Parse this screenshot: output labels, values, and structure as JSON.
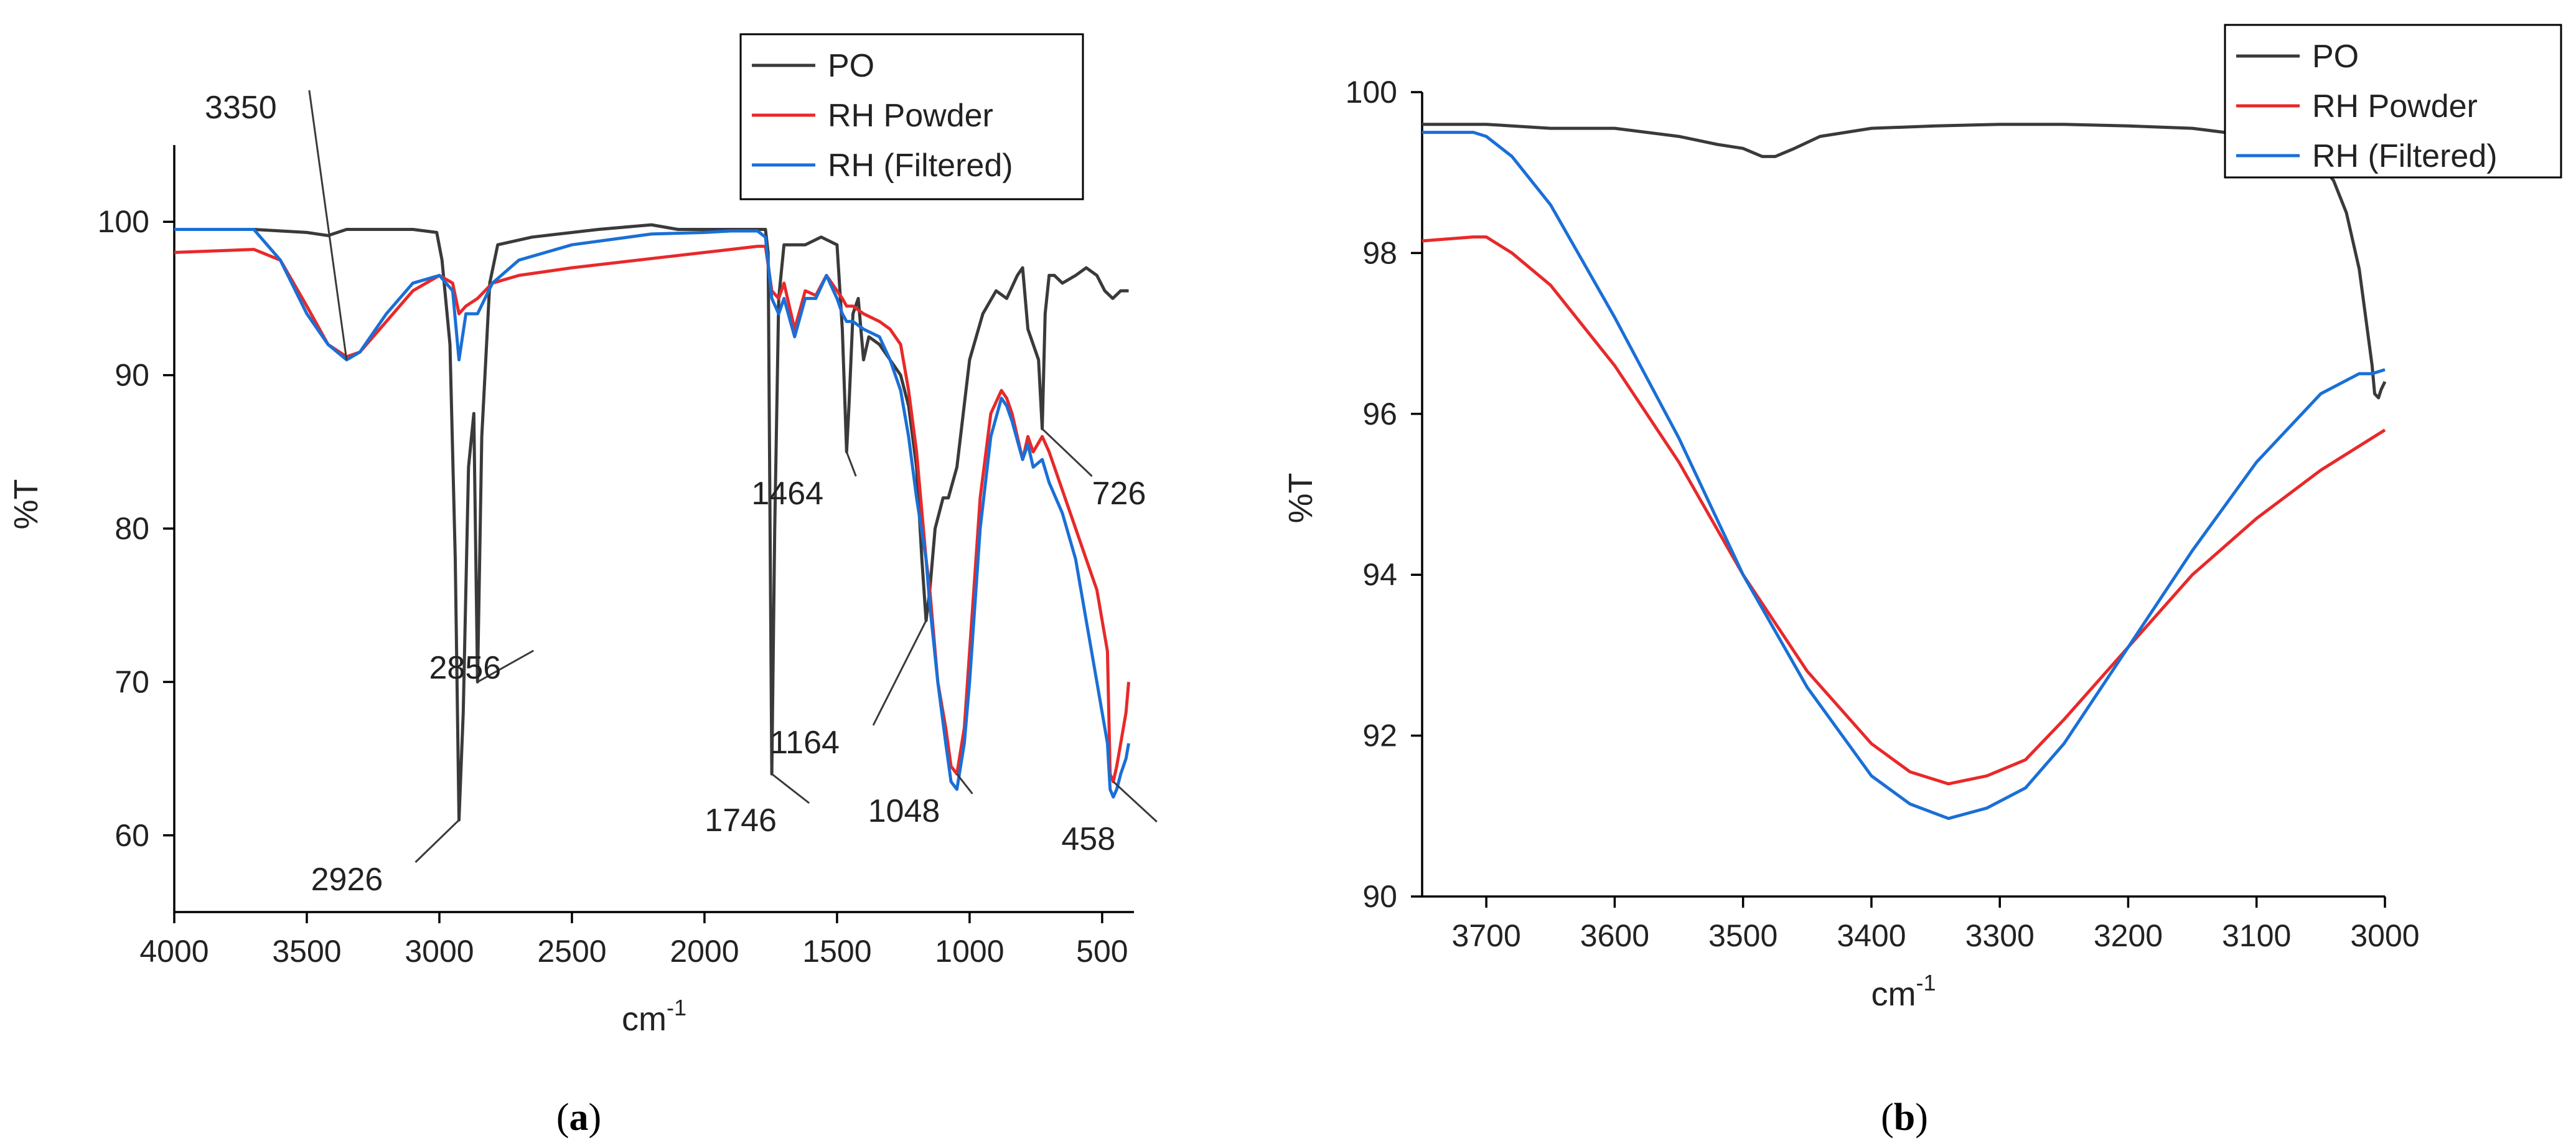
{
  "colors": {
    "po": "#3a3a3a",
    "rh_powder": "#e8292a",
    "rh_filtered": "#1a6fd6"
  },
  "chart_data": [
    {
      "type": "line",
      "panel_label": "(a)",
      "panel_letter": "a",
      "xlabel": "cm",
      "xlabel_sup": "-1",
      "ylabel": "%T",
      "xlim": [
        4000,
        380
      ],
      "ylim": [
        55,
        105
      ],
      "xticks": [
        "4000",
        "3500",
        "3000",
        "2500",
        "2000",
        "1500",
        "1000",
        "500"
      ],
      "yticks": [
        "60",
        "70",
        "80",
        "90",
        "100"
      ],
      "legend": [
        "PO",
        "RH Powder",
        "RH (Filtered)"
      ],
      "series": [
        {
          "name": "PO",
          "color_key": "po",
          "x": [
            3700,
            3500,
            3420,
            3350,
            3200,
            3100,
            3010,
            2990,
            2960,
            2940,
            2926,
            2910,
            2890,
            2870,
            2856,
            2840,
            2810,
            2780,
            2650,
            2400,
            2200,
            2100,
            1900,
            1800,
            1770,
            1760,
            1746,
            1735,
            1720,
            1700,
            1660,
            1620,
            1560,
            1500,
            1480,
            1470,
            1464,
            1455,
            1440,
            1420,
            1400,
            1380,
            1340,
            1300,
            1260,
            1230,
            1200,
            1180,
            1164,
            1150,
            1130,
            1100,
            1080,
            1048,
            1000,
            950,
            900,
            860,
            820,
            800,
            780,
            740,
            726,
            715,
            700,
            680,
            650,
            600,
            560,
            520,
            490,
            460,
            430,
            400
          ],
          "y": [
            99.5,
            99.3,
            99.1,
            99.5,
            99.5,
            99.5,
            99.3,
            97.5,
            92,
            78,
            61,
            68,
            84,
            87.5,
            70,
            86,
            96,
            98.5,
            99,
            99.5,
            99.8,
            99.5,
            99.5,
            99.5,
            99.5,
            98,
            64,
            80,
            95,
            98.5,
            98.5,
            98.5,
            99,
            98.5,
            93,
            88,
            85,
            88,
            94,
            95,
            91,
            92.5,
            92,
            91,
            90,
            88,
            84,
            78,
            74,
            76,
            80,
            82,
            82,
            84,
            91,
            94,
            95.5,
            95,
            96.5,
            97,
            93,
            91,
            86.5,
            94,
            96.5,
            96.5,
            96,
            96.5,
            97,
            96.5,
            95.5,
            95,
            95.5,
            95.5
          ]
        },
        {
          "name": "RH Powder",
          "color_key": "rh_powder",
          "x": [
            4000,
            3700,
            3600,
            3500,
            3420,
            3350,
            3300,
            3200,
            3100,
            3000,
            2950,
            2926,
            2900,
            2856,
            2800,
            2700,
            2500,
            2200,
            2000,
            1900,
            1800,
            1770,
            1746,
            1720,
            1700,
            1660,
            1620,
            1580,
            1540,
            1500,
            1480,
            1464,
            1440,
            1400,
            1340,
            1300,
            1260,
            1230,
            1200,
            1164,
            1150,
            1120,
            1090,
            1070,
            1048,
            1020,
            1000,
            960,
            920,
            880,
            860,
            840,
            800,
            780,
            760,
            726,
            700,
            650,
            600,
            560,
            520,
            500,
            480,
            470,
            458,
            445,
            430,
            410,
            400
          ],
          "y": [
            98,
            98.2,
            97.5,
            94.5,
            92,
            91.2,
            91.5,
            93.5,
            95.5,
            96.5,
            96,
            94,
            94.5,
            95,
            96,
            96.5,
            97,
            97.6,
            98,
            98.2,
            98.4,
            98.4,
            95.5,
            95,
            96,
            93,
            95.5,
            95.2,
            96.5,
            95.5,
            95,
            94.5,
            94.5,
            94,
            93.5,
            93,
            92,
            89,
            85,
            78,
            76,
            70,
            67,
            64.5,
            64,
            67,
            72,
            82,
            87.5,
            89,
            88.5,
            87.5,
            84.5,
            86,
            85,
            86,
            85,
            82.5,
            80,
            78,
            76,
            74,
            72,
            64,
            63.5,
            64.5,
            66,
            68,
            70
          ]
        },
        {
          "name": "RH (Filtered)",
          "color_key": "rh_filtered",
          "x": [
            4000,
            3700,
            3600,
            3500,
            3420,
            3350,
            3300,
            3200,
            3100,
            3000,
            2950,
            2926,
            2900,
            2856,
            2800,
            2700,
            2500,
            2200,
            2000,
            1900,
            1800,
            1770,
            1746,
            1720,
            1700,
            1660,
            1620,
            1580,
            1540,
            1500,
            1480,
            1464,
            1440,
            1400,
            1340,
            1300,
            1260,
            1230,
            1200,
            1164,
            1150,
            1120,
            1090,
            1070,
            1048,
            1020,
            1000,
            960,
            920,
            880,
            860,
            840,
            800,
            780,
            760,
            726,
            700,
            650,
            600,
            560,
            520,
            500,
            480,
            470,
            458,
            445,
            430,
            410,
            400
          ],
          "y": [
            99.5,
            99.5,
            97.5,
            94,
            92,
            91,
            91.5,
            94,
            96,
            96.5,
            95.5,
            91,
            94,
            94,
            96,
            97.5,
            98.5,
            99.2,
            99.3,
            99.4,
            99.4,
            99,
            95,
            94,
            95,
            92.5,
            95,
            95,
            96.5,
            95,
            94,
            93.5,
            93.5,
            93,
            92.5,
            91,
            89,
            86,
            82,
            78,
            75,
            70,
            66,
            63.5,
            63,
            66,
            70,
            80,
            86,
            88.5,
            88,
            87,
            84.5,
            85.5,
            84,
            84.5,
            83,
            81,
            78,
            74,
            70,
            68,
            66,
            63,
            62.5,
            63,
            64,
            65,
            66
          ]
        }
      ],
      "annotations": [
        {
          "text": "3350",
          "x": 3350,
          "y": 91
        },
        {
          "text": "2926",
          "x": 2926,
          "y": 61
        },
        {
          "text": "2856",
          "x": 2856,
          "y": 70
        },
        {
          "text": "1746",
          "x": 1746,
          "y": 64
        },
        {
          "text": "1464",
          "x": 1464,
          "y": 85
        },
        {
          "text": "1164",
          "x": 1164,
          "y": 74
        },
        {
          "text": "1048",
          "x": 1048,
          "y": 64
        },
        {
          "text": "726",
          "x": 726,
          "y": 86.5
        },
        {
          "text": "458",
          "x": 458,
          "y": 63.5
        }
      ]
    },
    {
      "type": "line",
      "panel_label": "(b)",
      "panel_letter": "b",
      "xlabel": "cm",
      "xlabel_sup": "-1",
      "ylabel": "%T",
      "xlim": [
        3750,
        3000
      ],
      "ylim": [
        90,
        100
      ],
      "xticks": [
        "3700",
        "3600",
        "3500",
        "3400",
        "3300",
        "3200",
        "3100",
        "3000"
      ],
      "yticks": [
        "90",
        "92",
        "94",
        "96",
        "98",
        "100"
      ],
      "legend": [
        "PO",
        "RH Powder",
        "RH (Filtered)"
      ],
      "series": [
        {
          "name": "PO",
          "color_key": "po",
          "x": [
            3750,
            3700,
            3650,
            3600,
            3550,
            3520,
            3500,
            3485,
            3475,
            3460,
            3440,
            3400,
            3350,
            3300,
            3250,
            3200,
            3150,
            3100,
            3070,
            3050,
            3040,
            3030,
            3020,
            3015,
            3010,
            3008,
            3005,
            3003,
            3000
          ],
          "y": [
            99.6,
            99.6,
            99.55,
            99.55,
            99.45,
            99.35,
            99.3,
            99.2,
            99.2,
            99.3,
            99.45,
            99.55,
            99.58,
            99.6,
            99.6,
            99.58,
            99.55,
            99.45,
            99.3,
            99.1,
            98.9,
            98.5,
            97.8,
            97.2,
            96.6,
            96.25,
            96.2,
            96.3,
            96.4
          ]
        },
        {
          "name": "RH Powder",
          "color_key": "rh_powder",
          "x": [
            3750,
            3710,
            3700,
            3680,
            3650,
            3600,
            3550,
            3500,
            3450,
            3400,
            3370,
            3340,
            3310,
            3280,
            3250,
            3200,
            3150,
            3100,
            3050,
            3000
          ],
          "y": [
            98.15,
            98.2,
            98.2,
            98,
            97.6,
            96.6,
            95.4,
            94,
            92.8,
            91.9,
            91.55,
            91.4,
            91.5,
            91.7,
            92.2,
            93.1,
            94,
            94.7,
            95.3,
            95.8
          ]
        },
        {
          "name": "RH (Filtered)",
          "color_key": "rh_filtered",
          "x": [
            3750,
            3710,
            3700,
            3680,
            3650,
            3600,
            3550,
            3500,
            3450,
            3400,
            3370,
            3340,
            3310,
            3280,
            3250,
            3200,
            3150,
            3100,
            3050,
            3020,
            3010,
            3000
          ],
          "y": [
            99.5,
            99.5,
            99.45,
            99.2,
            98.6,
            97.2,
            95.7,
            94,
            92.6,
            91.5,
            91.15,
            90.97,
            91.1,
            91.35,
            91.9,
            93.1,
            94.3,
            95.4,
            96.25,
            96.5,
            96.5,
            96.55
          ]
        }
      ],
      "annotations": []
    }
  ]
}
